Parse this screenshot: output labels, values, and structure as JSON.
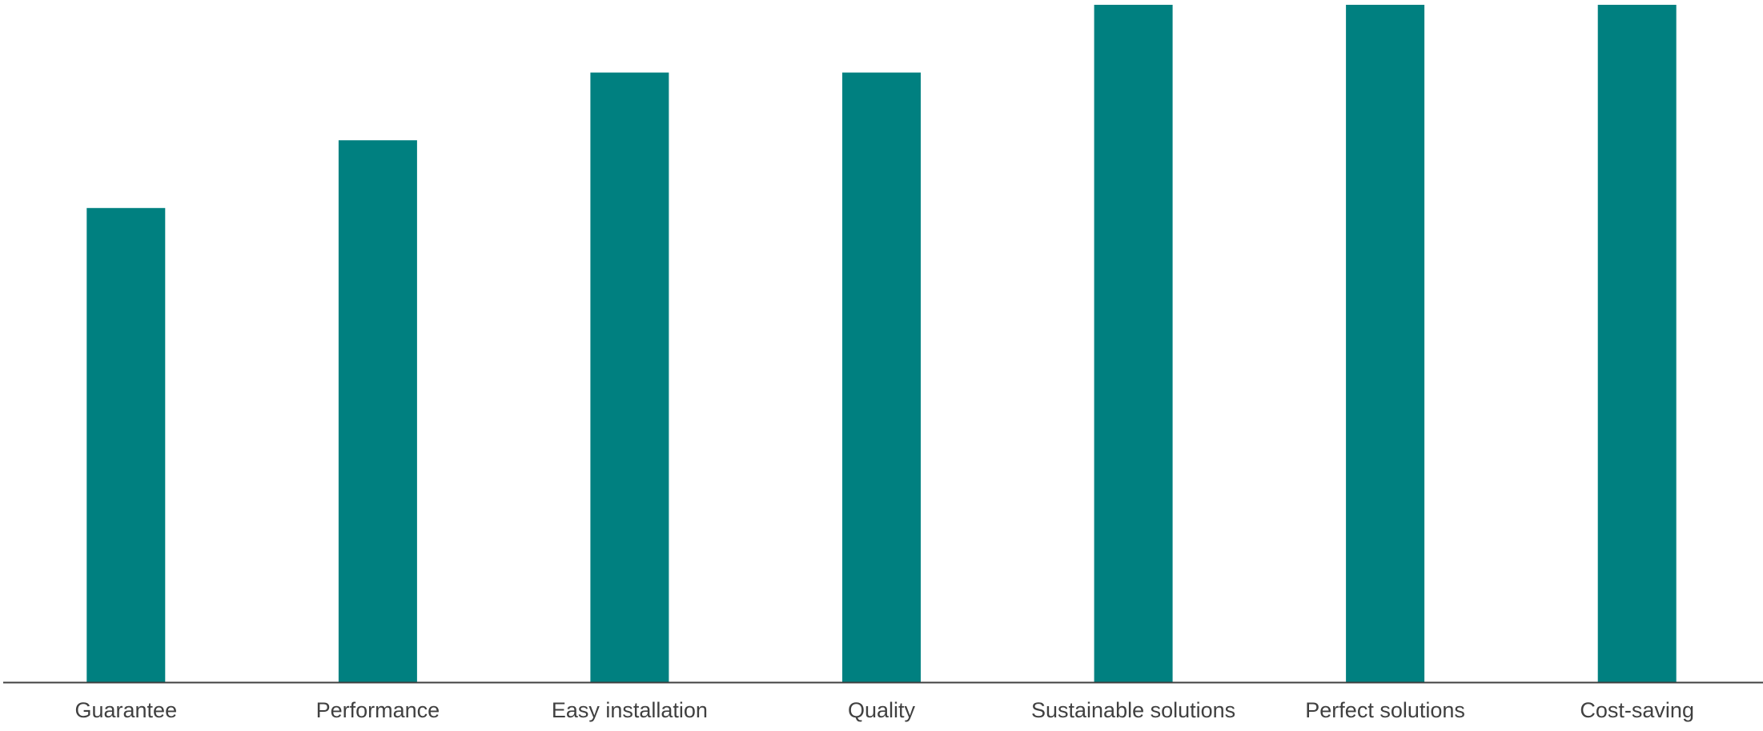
{
  "chart_data": {
    "type": "bar",
    "title": "",
    "xlabel": "",
    "ylabel": "",
    "categories": [
      "Guarantee",
      "Performance",
      "Easy installation",
      "Quality",
      "Sustainable solutions",
      "Perfect solutions",
      "Cost-saving"
    ],
    "values": [
      7,
      8,
      9,
      9,
      10,
      10,
      10
    ],
    "ylim": [
      0,
      10
    ],
    "grid": false,
    "legend": "none",
    "bar_color": "#008080",
    "axis_color": "#404040",
    "label_color": "#404040"
  }
}
